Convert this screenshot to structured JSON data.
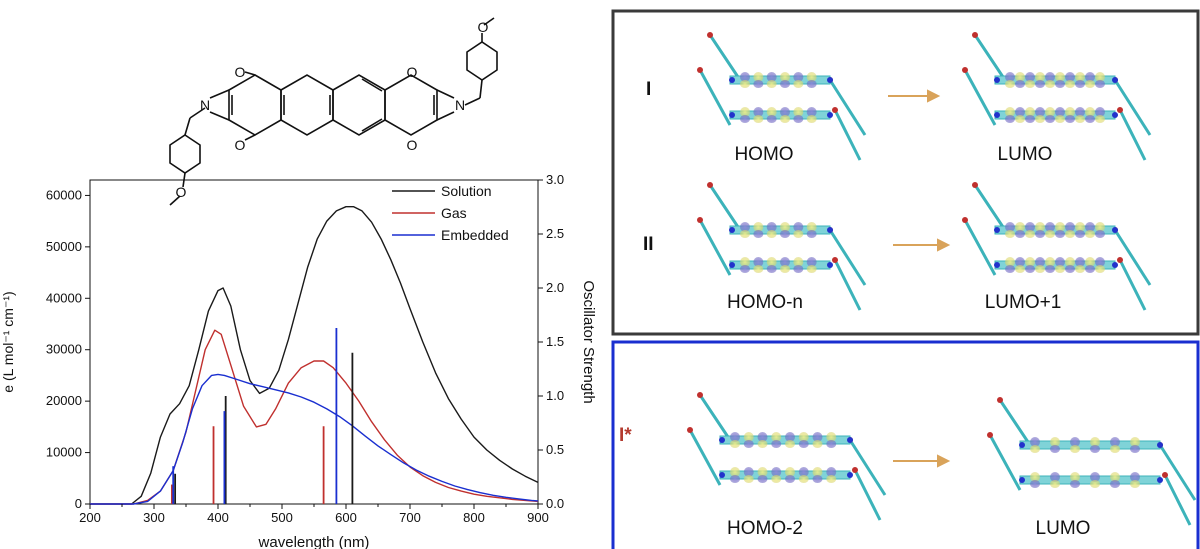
{
  "chart_data": {
    "type": "line",
    "xlabel": "wavelength (nm)",
    "ylabel": "e (L mol⁻¹ cm⁻¹)",
    "y2label": "Oscillator Strength",
    "xlim": [
      200,
      900
    ],
    "ylim": [
      0,
      63000
    ],
    "y2lim": [
      0,
      3.0
    ],
    "x_ticks": [
      "200",
      "300",
      "400",
      "500",
      "600",
      "700",
      "800",
      "900"
    ],
    "y_ticks": [
      "0",
      "10000",
      "20000",
      "30000",
      "40000",
      "50000",
      "60000"
    ],
    "y2_ticks": [
      "0.0",
      "0.5",
      "1.0",
      "1.5",
      "2.0",
      "2.5",
      "3.0"
    ],
    "legend_position": "top-right",
    "grid": false,
    "series": [
      {
        "name": "Solution",
        "color": "#1a1a1a",
        "x": [
          200,
          265,
          280,
          295,
          310,
          325,
          340,
          355,
          370,
          385,
          400,
          408,
          420,
          435,
          450,
          465,
          480,
          495,
          510,
          525,
          540,
          555,
          570,
          585,
          600,
          612,
          625,
          640,
          655,
          670,
          685,
          700,
          720,
          740,
          760,
          780,
          800,
          820,
          840,
          860,
          880,
          900
        ],
        "y": [
          0,
          0,
          1500,
          6000,
          13000,
          17500,
          19500,
          23000,
          30000,
          37500,
          41500,
          42000,
          38500,
          30000,
          24000,
          21500,
          22500,
          26000,
          32000,
          39000,
          46000,
          51500,
          55000,
          57000,
          57800,
          57800,
          57000,
          54800,
          51500,
          47500,
          43000,
          38000,
          31500,
          25500,
          20500,
          16500,
          13000,
          10500,
          8500,
          6800,
          5400,
          4200
        ]
      },
      {
        "name": "Gas",
        "color": "#c0302e",
        "x": [
          200,
          268,
          290,
          310,
          330,
          350,
          365,
          380,
          395,
          405,
          420,
          440,
          460,
          475,
          490,
          510,
          530,
          550,
          565,
          580,
          600,
          620,
          640,
          660,
          680,
          700,
          720,
          740,
          760,
          780,
          800,
          820,
          840,
          860,
          880,
          900
        ],
        "y": [
          0,
          0,
          700,
          2500,
          6500,
          14000,
          22000,
          30000,
          33800,
          33000,
          27000,
          19000,
          15000,
          15500,
          18500,
          23500,
          26500,
          27800,
          27800,
          26500,
          23500,
          20000,
          16000,
          12500,
          9500,
          7200,
          5500,
          4200,
          3200,
          2500,
          1900,
          1500,
          1200,
          900,
          700,
          500
        ]
      },
      {
        "name": "Embedded",
        "color": "#1a2fd0",
        "x": [
          200,
          268,
          290,
          310,
          330,
          345,
          360,
          375,
          390,
          400,
          410,
          430,
          450,
          470,
          490,
          510,
          530,
          550,
          570,
          590,
          610,
          630,
          650,
          670,
          690,
          710,
          730,
          750,
          770,
          790,
          810,
          830,
          850,
          870,
          890,
          900
        ],
        "y": [
          0,
          0,
          500,
          2500,
          6500,
          12000,
          18500,
          23000,
          25000,
          25200,
          25000,
          24200,
          23400,
          22800,
          22200,
          21600,
          20800,
          19800,
          18500,
          17000,
          15200,
          13200,
          11300,
          9600,
          8000,
          6600,
          5400,
          4400,
          3500,
          2800,
          2200,
          1700,
          1300,
          1000,
          700,
          600
        ]
      }
    ],
    "oscillator_sticks": [
      {
        "series": "Solution",
        "color": "#1a1a1a",
        "x": [
          333,
          412,
          610
        ],
        "y": [
          0.28,
          1.0,
          1.4
        ]
      },
      {
        "series": "Gas",
        "color": "#c0302e",
        "x": [
          328,
          393,
          565
        ],
        "y": [
          0.18,
          0.72,
          0.72
        ]
      },
      {
        "series": "Embedded",
        "color": "#1a2fd0",
        "x": [
          330,
          410,
          585
        ],
        "y": [
          0.35,
          0.86,
          1.63
        ]
      }
    ]
  },
  "molecule": {
    "atoms": [
      "O",
      "O",
      "O",
      "O",
      "N",
      "N",
      "O",
      "O"
    ]
  },
  "panels": {
    "top": {
      "rows": [
        {
          "label": "I",
          "from": "HOMO",
          "to": "LUMO"
        },
        {
          "label": "II",
          "from": "HOMO-n",
          "to": "LUMO+1"
        }
      ]
    },
    "bottom": {
      "rows": [
        {
          "label": "I*",
          "from": "HOMO-2",
          "to": "LUMO"
        }
      ]
    }
  }
}
